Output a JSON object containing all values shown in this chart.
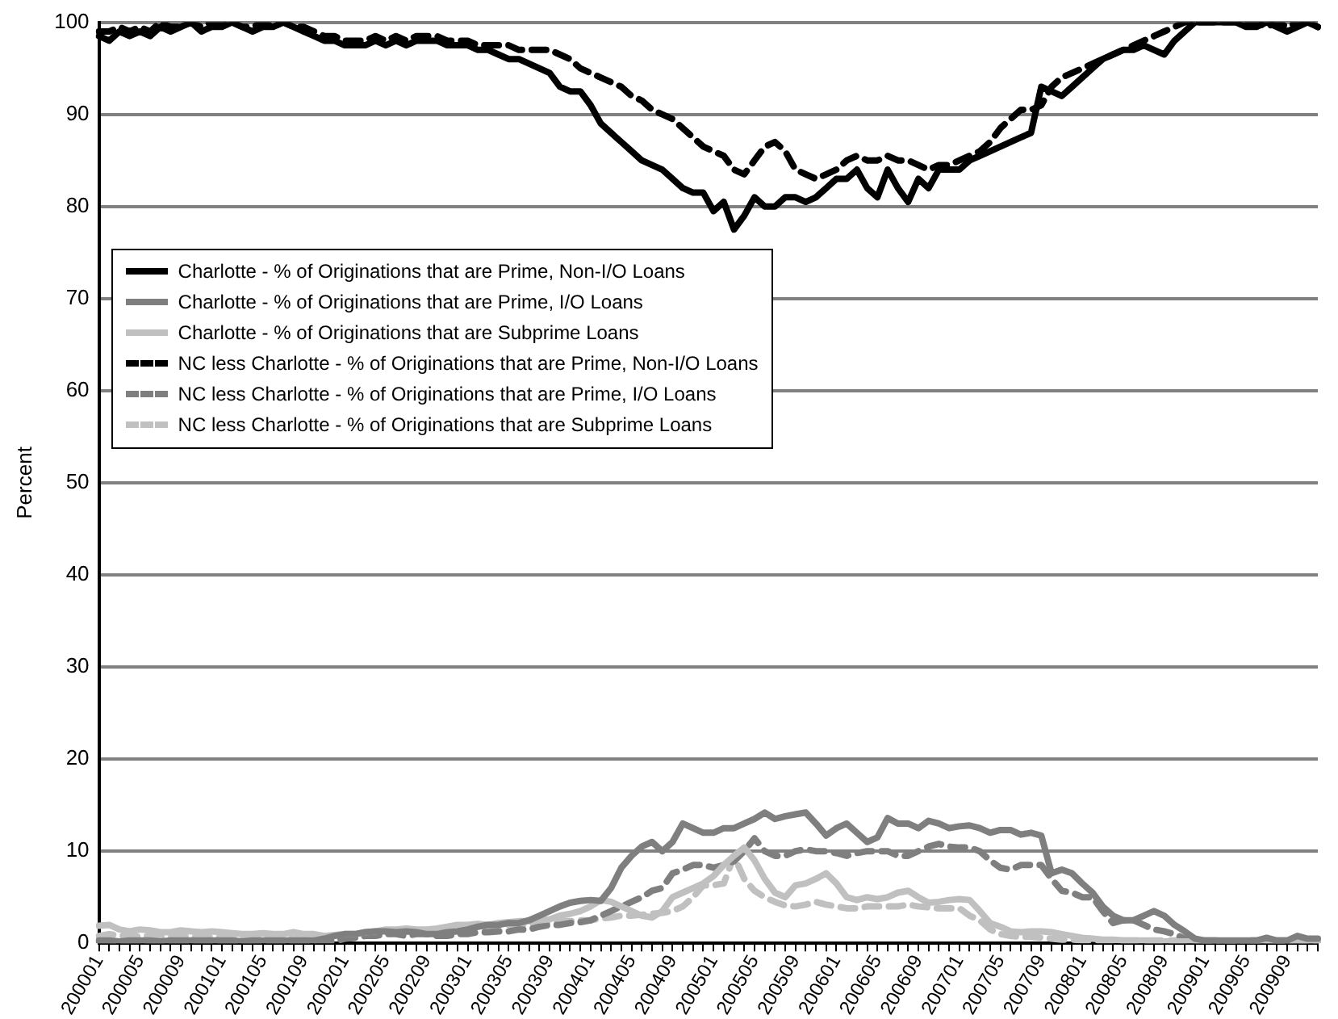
{
  "chart_data": {
    "type": "line",
    "ylabel": "Percent",
    "ylim": [
      0,
      100
    ],
    "yticks": [
      0,
      10,
      20,
      30,
      40,
      50,
      60,
      70,
      80,
      90,
      100
    ],
    "grid": "y",
    "legend": "left",
    "marker": "none",
    "categories": [
      "200001",
      null,
      null,
      null,
      "200005",
      null,
      null,
      null,
      "200009",
      null,
      null,
      null,
      "200101",
      null,
      null,
      null,
      "200105",
      null,
      null,
      null,
      "200109",
      null,
      null,
      null,
      "200201",
      null,
      null,
      null,
      "200205",
      null,
      null,
      null,
      "200209",
      null,
      null,
      null,
      "200301",
      null,
      null,
      null,
      "200305",
      null,
      null,
      null,
      "200309",
      null,
      null,
      null,
      "200401",
      null,
      null,
      null,
      "200405",
      null,
      null,
      null,
      "200409",
      null,
      null,
      null,
      "200501",
      null,
      null,
      null,
      "200505",
      null,
      null,
      null,
      "200509",
      null,
      null,
      null,
      "200601",
      null,
      null,
      null,
      "200605",
      null,
      null,
      null,
      "200609",
      null,
      null,
      null,
      "200701",
      null,
      null,
      null,
      "200705",
      null,
      null,
      null,
      "200709",
      null,
      null,
      null,
      "200801",
      null,
      null,
      null,
      "200805",
      null,
      null,
      null,
      "200809",
      null,
      null,
      null,
      "200901",
      null,
      null,
      null,
      "200905",
      null,
      null,
      null,
      "200909",
      null,
      null,
      null
    ],
    "series": [
      {
        "name": "Charlotte - % of Originations that are Prime, Non-I/O Loans",
        "color": "#000000",
        "line_style": "solid",
        "values": [
          98.5,
          98,
          99,
          98.5,
          99,
          98.5,
          99.5,
          99,
          99.5,
          100,
          99,
          99.5,
          99.5,
          100,
          99.5,
          99,
          99.5,
          99.5,
          100,
          99.5,
          99,
          98.5,
          98,
          98,
          97.5,
          97.5,
          97.5,
          98,
          97.5,
          98,
          97.5,
          98,
          98,
          98,
          97.5,
          97.5,
          97.5,
          97,
          97,
          96.5,
          96,
          96,
          95.5,
          95,
          94.5,
          93,
          92.5,
          92.5,
          91,
          89,
          88,
          87,
          86,
          85,
          84.5,
          84,
          83,
          82,
          81.5,
          81.5,
          79.5,
          80.5,
          77.5,
          79,
          81,
          80,
          80,
          81,
          81,
          80.5,
          81,
          82,
          83,
          83,
          84,
          82,
          81,
          84,
          82,
          80.5,
          83,
          82,
          84,
          84,
          84,
          85,
          85.5,
          86,
          86.5,
          87,
          87.5,
          88,
          93,
          92.5,
          92,
          93,
          94,
          95,
          96,
          96.5,
          97,
          97,
          97.5,
          97,
          96.5,
          98,
          99,
          100,
          100,
          100,
          100,
          100,
          99.5,
          99.5,
          100,
          99.5,
          99,
          99.5,
          100,
          99.5
        ]
      },
      {
        "name": "Charlotte - % of Originations that are Prime, I/O Loans",
        "color": "#7f7f7f",
        "line_style": "solid",
        "values": [
          0.3,
          0.3,
          0.2,
          0.3,
          0.3,
          0.3,
          0.2,
          0.3,
          0.3,
          0.3,
          0.3,
          0.3,
          0.3,
          0.3,
          0.2,
          0.3,
          0.3,
          0.3,
          0.3,
          0.3,
          0.3,
          0.3,
          0.5,
          0.8,
          1,
          1,
          1.2,
          1.3,
          1.3,
          1.2,
          1.3,
          1.2,
          1,
          1,
          1.2,
          1.3,
          1.5,
          1.8,
          2,
          2,
          2.2,
          2.2,
          2.5,
          3,
          3.5,
          4,
          4.4,
          4.6,
          4.7,
          4.6,
          6,
          8.2,
          9.5,
          10.5,
          11,
          10,
          11,
          13,
          12.5,
          12,
          12,
          12.5,
          12.5,
          13,
          13.5,
          14.2,
          13.5,
          13.8,
          14,
          14.2,
          13,
          11.7,
          12.5,
          13,
          12,
          11,
          11.5,
          13.6,
          13,
          13,
          12.5,
          13.3,
          13,
          12.5,
          12.7,
          12.8,
          12.5,
          12,
          12.3,
          12.3,
          11.8,
          12,
          11.7,
          7.6,
          8,
          7.6,
          6.5,
          5.5,
          4,
          3,
          2.5,
          2.5,
          3,
          3.5,
          3,
          2,
          1.3,
          0.5,
          0.3,
          0.3,
          0.3,
          0.3,
          0.3,
          0.3,
          0.6,
          0.3,
          0.3,
          0.8,
          0.5,
          0.5
        ]
      },
      {
        "name": "Charlotte - % of Originations that are Subprime Loans",
        "color": "#c0c0c0",
        "line_style": "solid",
        "values": [
          1.9,
          2,
          1.5,
          1.3,
          1.5,
          1.4,
          1.2,
          1.2,
          1.4,
          1.3,
          1.2,
          1.3,
          1.2,
          1.1,
          1,
          1,
          1.1,
          1,
          1,
          1.2,
          1,
          1,
          0.8,
          0.9,
          1,
          1,
          1.2,
          1.3,
          1.5,
          1.5,
          1.6,
          1.5,
          1.5,
          1.6,
          1.8,
          2,
          2,
          2.1,
          2,
          2.2,
          2.3,
          2.4,
          2.4,
          2.5,
          2.6,
          3,
          3.2,
          3.5,
          4,
          4.7,
          4.5,
          4,
          3.5,
          3,
          2.8,
          3.5,
          5,
          5.5,
          6,
          6.5,
          7.3,
          8.5,
          9.5,
          10.4,
          9,
          7,
          5.5,
          5,
          6.3,
          6.5,
          7,
          7.6,
          6.5,
          5,
          4.7,
          5,
          4.8,
          5,
          5.5,
          5.7,
          5,
          4.4,
          4.5,
          4.7,
          4.8,
          4.7,
          3.5,
          2.2,
          1.8,
          1.3,
          1.2,
          1.3,
          1.3,
          1.2,
          1,
          0.8,
          0.6,
          0.5,
          0.4,
          0.4,
          0.3,
          0.3,
          0.3,
          0.2,
          0.2,
          0.2,
          0.2,
          0.2,
          0.2,
          0.2,
          0.2,
          0.2,
          0.2,
          0.2,
          0.2,
          0.2,
          0.2,
          0.2,
          0.2,
          0.2
        ]
      },
      {
        "name": "NC less Charlotte - % of Originations that are Prime, Non-I/O Loans",
        "color": "#000000",
        "line_style": "dashed",
        "values": [
          99,
          99,
          99.5,
          99,
          99.5,
          99,
          100,
          99.5,
          99.5,
          100,
          99.5,
          100,
          100,
          100,
          99.5,
          99.5,
          100,
          99.5,
          100,
          99.5,
          99.5,
          99,
          98.5,
          98.5,
          98,
          98,
          98,
          98.5,
          98,
          98.5,
          98,
          98.5,
          98.5,
          98.5,
          98,
          98,
          98,
          97.5,
          97.5,
          97.5,
          97.5,
          97,
          97,
          97,
          97,
          96.5,
          96,
          95,
          94.5,
          94,
          93.5,
          93,
          92,
          91.5,
          90.5,
          90,
          89.5,
          88.5,
          87.5,
          86.5,
          86,
          85.5,
          84,
          83.5,
          85,
          86.5,
          87,
          86,
          84,
          83.5,
          83,
          83.5,
          84,
          85,
          85.5,
          85,
          85,
          85.5,
          85,
          85,
          84.5,
          84,
          84.5,
          84.5,
          85,
          85.5,
          86,
          87,
          88.5,
          89.5,
          90.5,
          90.5,
          91,
          93,
          94,
          94.5,
          95,
          95.5,
          96,
          96.5,
          97,
          97.5,
          98,
          98.5,
          99,
          99.5,
          100,
          100,
          100,
          100,
          100,
          100,
          100,
          100,
          99.5,
          100,
          99.5,
          100,
          100,
          99.5
        ]
      },
      {
        "name": "NC less Charlotte - % of Originations that are Prime, I/O Loans",
        "color": "#7f7f7f",
        "line_style": "dashed",
        "values": [
          0.2,
          0.2,
          0.2,
          0.2,
          0.2,
          0.2,
          0.2,
          0.2,
          0.2,
          0.2,
          0.2,
          0.2,
          0.2,
          0.2,
          0.2,
          0.2,
          0.2,
          0.2,
          0.2,
          0.2,
          0.2,
          0.2,
          0.2,
          0.2,
          0.5,
          0.6,
          0.8,
          0.8,
          1,
          1,
          0.8,
          1,
          1,
          0.8,
          0.8,
          1,
          1,
          1.2,
          1.2,
          1.3,
          1.3,
          1.5,
          1.5,
          1.8,
          2,
          2,
          2.2,
          2.3,
          2.5,
          3,
          3.5,
          4,
          4.5,
          5,
          5.7,
          6,
          7.6,
          8,
          8.5,
          8.5,
          8.2,
          8.5,
          8.9,
          10,
          11.4,
          10,
          9.5,
          9.5,
          10,
          10.2,
          10,
          10,
          9.8,
          9.5,
          9.8,
          10,
          10,
          10,
          9.5,
          9.5,
          10,
          10.5,
          10.8,
          10.5,
          10.4,
          10.4,
          10,
          9,
          8.2,
          8,
          8.5,
          8.5,
          8.5,
          7,
          5.7,
          5.5,
          5,
          5,
          3.5,
          2.2,
          2.5,
          2.5,
          2,
          1.5,
          1.3,
          1,
          0.5,
          0.3,
          0.3,
          0.3,
          0.2,
          0.2,
          0.3,
          0.3,
          0.3,
          0.3,
          0.3,
          0.3,
          0.3,
          0.3
        ]
      },
      {
        "name": "NC less Charlotte - % of Originations that are Subprime Loans",
        "color": "#c0c0c0",
        "line_style": "dashed",
        "values": [
          0.8,
          1,
          0.8,
          0.8,
          0.7,
          0.8,
          0.7,
          0.6,
          0.8,
          0.7,
          0.6,
          0.7,
          0.6,
          0.6,
          0.5,
          0.6,
          0.5,
          0.6,
          0.5,
          0.5,
          0.5,
          0.5,
          0.4,
          0.5,
          0.6,
          0.7,
          0.8,
          1,
          1,
          1.1,
          1.2,
          1.2,
          1.3,
          1.4,
          1.5,
          1.5,
          1.6,
          1.7,
          1.8,
          1.9,
          2,
          2,
          2.1,
          2.2,
          2.3,
          2.4,
          2.4,
          2.5,
          2.5,
          2.7,
          2.8,
          3,
          3,
          3.1,
          3.2,
          3.3,
          3.5,
          4,
          5,
          6.3,
          6.3,
          6.5,
          9.5,
          7,
          5.7,
          5,
          4.5,
          4.1,
          4,
          4.2,
          4.5,
          4.2,
          4,
          3.8,
          3.8,
          4,
          4,
          4,
          4,
          4.2,
          4,
          3.9,
          3.8,
          3.8,
          3.8,
          3,
          2.5,
          1.5,
          1,
          0.8,
          0.7,
          0.7,
          0.6,
          0.5,
          0.4,
          0.4,
          0.3,
          0.3,
          0.3,
          0.3,
          0.3,
          0.3,
          0.3,
          0.3,
          0.3,
          0.3,
          0.3,
          0.3,
          0.2,
          0.2,
          0.2,
          0.2,
          0.2,
          0.2,
          0.2,
          0.2,
          0.2,
          0.2,
          0.2,
          0.2
        ]
      }
    ]
  }
}
